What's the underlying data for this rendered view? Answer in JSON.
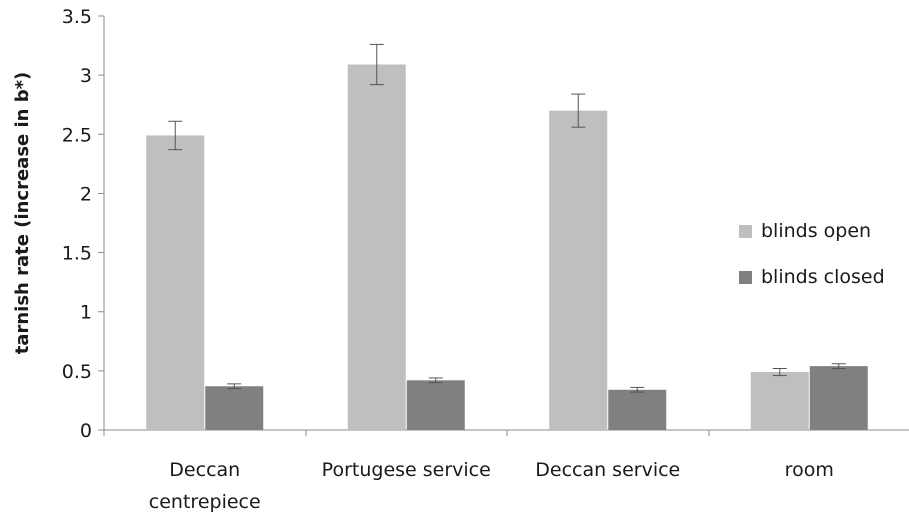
{
  "chart_data": {
    "type": "bar",
    "title": "",
    "xlabel": "",
    "ylabel": "tarnish rate (increase in b*)",
    "ylim": [
      0,
      3.5
    ],
    "yticks": [
      "0",
      "0.5",
      "1",
      "1.5",
      "2",
      "2.5",
      "3",
      "3.5"
    ],
    "categories": [
      [
        "Deccan",
        "centrepiece"
      ],
      [
        "Portugese service"
      ],
      [
        "Deccan service"
      ],
      [
        "room"
      ]
    ],
    "series": [
      {
        "name": "blinds open",
        "color": "#bfbfbf",
        "values": [
          2.49,
          3.09,
          2.7,
          0.49
        ],
        "errors": [
          0.12,
          0.17,
          0.14,
          0.03
        ]
      },
      {
        "name": "blinds closed",
        "color": "#808080",
        "values": [
          0.37,
          0.42,
          0.34,
          0.54
        ],
        "errors": [
          0.02,
          0.02,
          0.02,
          0.02
        ]
      }
    ],
    "grid": false,
    "legend_position": "right"
  }
}
